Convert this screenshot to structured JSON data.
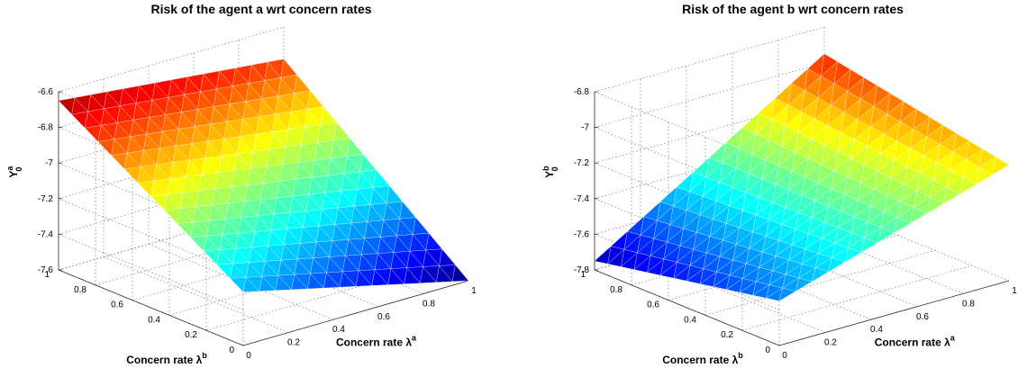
{
  "chart_data": [
    {
      "type": "surface",
      "title": "Risk of the agent a wrt concern rates",
      "xlabel": "Concern rate λ",
      "xlabel_sup": "a",
      "ylabel": "Concern rate λ",
      "ylabel_sup": "b",
      "zlabel": "Y",
      "zlabel_sup": "a",
      "zlabel_sub": "0",
      "xlim": [
        0,
        1
      ],
      "ylim": [
        0,
        1
      ],
      "zlim": [
        -7.6,
        -6.6
      ],
      "xticks": [
        "0",
        "0.2",
        "0.4",
        "0.6",
        "0.8",
        "1"
      ],
      "yticks": [
        "0",
        "0.2",
        "0.4",
        "0.6",
        "0.8",
        "1"
      ],
      "zticks": [
        "-7.6",
        "-7.4",
        "-7.2",
        "-7",
        "-6.8",
        "-6.6"
      ],
      "corners": {
        "x0_y0": -7.3,
        "x1_y0": -7.6,
        "x0_y1": -6.65,
        "x1_y1": -6.78
      },
      "colormap": "jet",
      "grid": true
    },
    {
      "type": "surface",
      "title": "Risk of the agent b wrt concern rates",
      "xlabel": "Concern rate λ",
      "xlabel_sup": "a",
      "ylabel": "Concern rate λ",
      "ylabel_sup": "b",
      "zlabel": "Y",
      "zlabel_sup": "b",
      "zlabel_sub": "0",
      "xlim": [
        0,
        1
      ],
      "ylim": [
        0,
        1
      ],
      "zlim": [
        -7.8,
        -6.8
      ],
      "xticks": [
        "0",
        "0.2",
        "0.4",
        "0.6",
        "0.8",
        "1"
      ],
      "yticks": [
        "0",
        "0.2",
        "0.4",
        "0.6",
        "0.8",
        "1"
      ],
      "zticks": [
        "-7.8",
        "-7.6",
        "-7.4",
        "-7.2",
        "-7",
        "-6.8"
      ],
      "corners": {
        "x0_y0": -7.55,
        "x1_y0": -7.15,
        "x0_y1": -7.75,
        "x1_y1": -6.95
      },
      "colormap": "jet",
      "grid": true
    }
  ]
}
